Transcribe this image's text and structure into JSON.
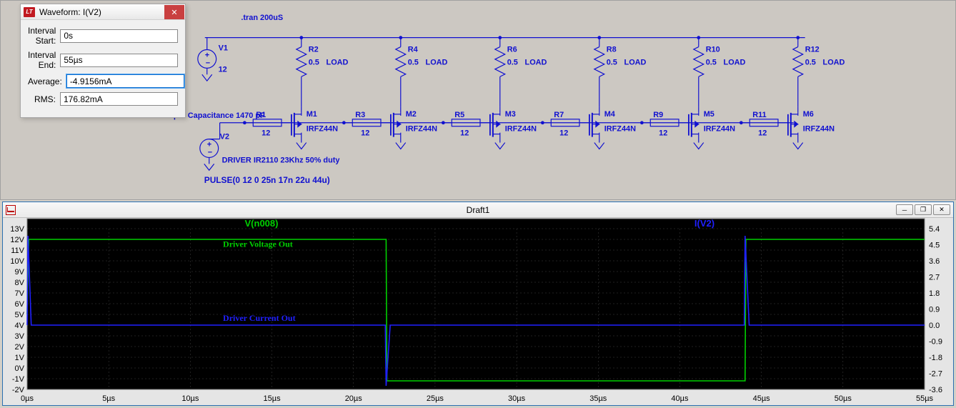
{
  "dialog": {
    "title": "Waveform: I(V2)",
    "rows": [
      {
        "label": "Interval Start:",
        "value": "0s"
      },
      {
        "label": "Interval End:",
        "value": "55µs"
      },
      {
        "label": "Average:",
        "value": "-4.9156mA"
      },
      {
        "label": "RMS:",
        "value": "176.82mA"
      }
    ],
    "focused_row": 2
  },
  "schematic": {
    "directive": ".tran 200uS",
    "input_cap_label": "Input Capacitance 1470 pF",
    "driver_label": "DRIVER IR2110 23Khz 50% duty",
    "pulse_label": "PULSE(0 12 0 25n 17n 22u 44u)",
    "v1": {
      "name": "V1",
      "value": "12"
    },
    "v2": {
      "name": "V2"
    },
    "stages": [
      {
        "rtop": "R2",
        "rg": "R1",
        "m": "M1"
      },
      {
        "rtop": "R4",
        "rg": "R3",
        "m": "M2"
      },
      {
        "rtop": "R6",
        "rg": "R5",
        "m": "M3"
      },
      {
        "rtop": "R8",
        "rg": "R7",
        "m": "M4"
      },
      {
        "rtop": "R10",
        "rg": "R9",
        "m": "M5"
      },
      {
        "rtop": "R12",
        "rg": "R11",
        "m": "M6"
      }
    ],
    "rtop_val": "0.5",
    "rg_val": "12",
    "load_label": "LOAD",
    "mosfet_model": "IRFZ44N",
    "colors": {
      "wire": "#1010d0",
      "bg": "#ccc8c2"
    }
  },
  "plot": {
    "title": "Draft1",
    "trace1": {
      "name": "V(n008)",
      "color": "#00d000"
    },
    "trace2": {
      "name": "I(V2)",
      "color": "#2020ff"
    },
    "ann1": "Driver Voltage Out",
    "ann2": "Driver Current Out",
    "left_ticks": [
      "13V",
      "12V",
      "11V",
      "10V",
      "9V",
      "8V",
      "7V",
      "6V",
      "5V",
      "4V",
      "3V",
      "2V",
      "1V",
      "0V",
      "-1V",
      "-2V"
    ],
    "right_ticks": [
      "5.4",
      "4.5",
      "3.6",
      "2.7",
      "1.8",
      "0.9",
      "0.0",
      "-0.9",
      "-1.8",
      "-2.7",
      "-3.6"
    ],
    "x_ticks": [
      "0µs",
      "5µs",
      "10µs",
      "15µs",
      "20µs",
      "25µs",
      "30µs",
      "35µs",
      "40µs",
      "45µs",
      "50µs",
      "55µs"
    ],
    "bg": "#000000",
    "grid": "#404040",
    "v_wave": {
      "high": 12,
      "low": -1.2,
      "t_fall": 22,
      "t_rise": 44,
      "period": 44
    },
    "i_wave": {
      "baseline_r": 0.0,
      "spike_hi": 5.0,
      "spike_lo": -3.4
    }
  }
}
